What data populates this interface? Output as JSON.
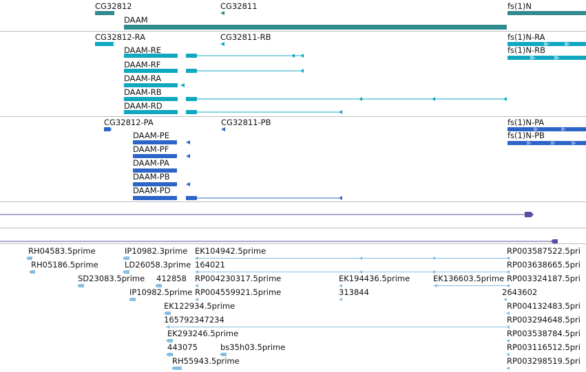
{
  "colors": {
    "gene": "#318b8e",
    "mrna_ra": "#0fa8c0",
    "cds": "#2d64c8",
    "est_line": "#5f4b9b",
    "est_arrow": "#5e49a6",
    "reads": "#86bde0"
  },
  "tracks": {
    "genes": {
      "features": [
        {
          "label": "CG32812"
        },
        {
          "label": "CG32811"
        },
        {
          "label": "fs(1)N"
        },
        {
          "label": "DAAM"
        }
      ]
    },
    "transcripts": {
      "features": [
        {
          "label": "CG32812-RA"
        },
        {
          "label": "CG32811-RB"
        },
        {
          "label": "fs(1)N-RA"
        },
        {
          "label": "fs(1)N-RB"
        },
        {
          "label": "DAAM-RE"
        },
        {
          "label": "DAAM-RF"
        },
        {
          "label": "DAAM-RA"
        },
        {
          "label": "DAAM-RB"
        },
        {
          "label": "DAAM-RD"
        }
      ]
    },
    "proteins": {
      "features": [
        {
          "label": "CG32812-PA"
        },
        {
          "label": "CG32811-PB"
        },
        {
          "label": "fs(1)N-PA"
        },
        {
          "label": "fs(1)N-PB"
        },
        {
          "label": "DAAM-PE"
        },
        {
          "label": "DAAM-PF"
        },
        {
          "label": "DAAM-PA"
        },
        {
          "label": "DAAM-PB"
        },
        {
          "label": "DAAM-PD"
        }
      ]
    },
    "reads": {
      "features": [
        {
          "label": "RH04583.5prime"
        },
        {
          "label": "IP10982.3prime"
        },
        {
          "label": "EK104942.5prime"
        },
        {
          "label": "RP003587522.5pri"
        },
        {
          "label": "RH05186.5prime"
        },
        {
          "label": "LD26058.3prime"
        },
        {
          "label": "164021"
        },
        {
          "label": "RP003638665.5pri"
        },
        {
          "label": "SD23083.5prime"
        },
        {
          "label": "412858"
        },
        {
          "label": "RP004230317.5prime"
        },
        {
          "label": "EK194436.5prime"
        },
        {
          "label": "EK136603.5prime"
        },
        {
          "label": "RP003324187.5pri"
        },
        {
          "label": "IP10982.5prime"
        },
        {
          "label": "RP004559921.5prime"
        },
        {
          "label": "313844"
        },
        {
          "label": "2643602"
        },
        {
          "label": "EK122934.5prime"
        },
        {
          "label": "RP004132483.5pri"
        },
        {
          "label": "165792347234"
        },
        {
          "label": "RP003294648.5pri"
        },
        {
          "label": "EK293246.5prime"
        },
        {
          "label": "RP003538784.5pri"
        },
        {
          "label": "443075"
        },
        {
          "label": "bs35h03.5prime"
        },
        {
          "label": "RP003116512.5pri"
        },
        {
          "label": "RH55943.5prime"
        },
        {
          "label": "RP003298519.5pri"
        }
      ]
    }
  }
}
